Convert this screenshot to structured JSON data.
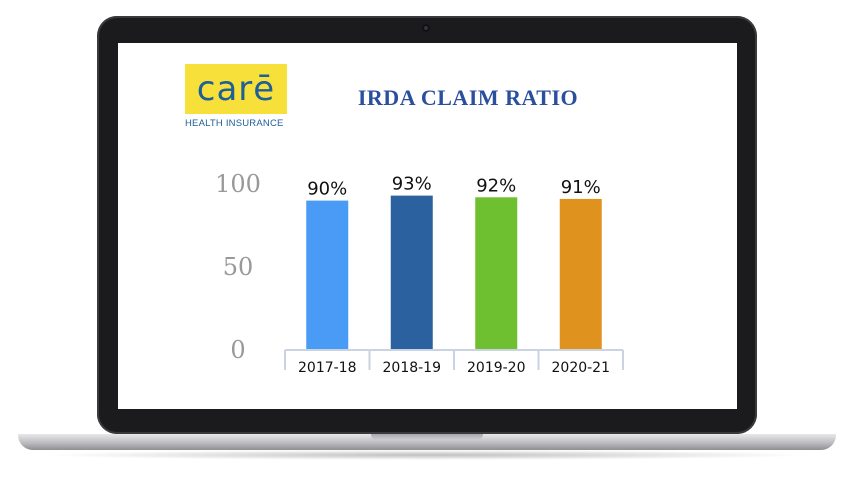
{
  "logo": {
    "wordmark": "carē",
    "tagline": "HEALTH INSURANCE"
  },
  "chart_data": {
    "type": "bar",
    "title": "IRDA CLAIM RATIO",
    "categories": [
      "2017-18",
      "2018-19",
      "2019-20",
      "2020-21"
    ],
    "values": [
      90,
      93,
      92,
      91
    ],
    "data_labels": [
      "90%",
      "93%",
      "92%",
      "91%"
    ],
    "colors": [
      "#4a9bf5",
      "#2b619e",
      "#6fc030",
      "#e0921f"
    ],
    "yticks": [
      "0",
      "50",
      "100"
    ],
    "ylim": [
      0,
      100
    ],
    "xlabel": "",
    "ylabel": "",
    "grid": false,
    "legend": "none"
  }
}
